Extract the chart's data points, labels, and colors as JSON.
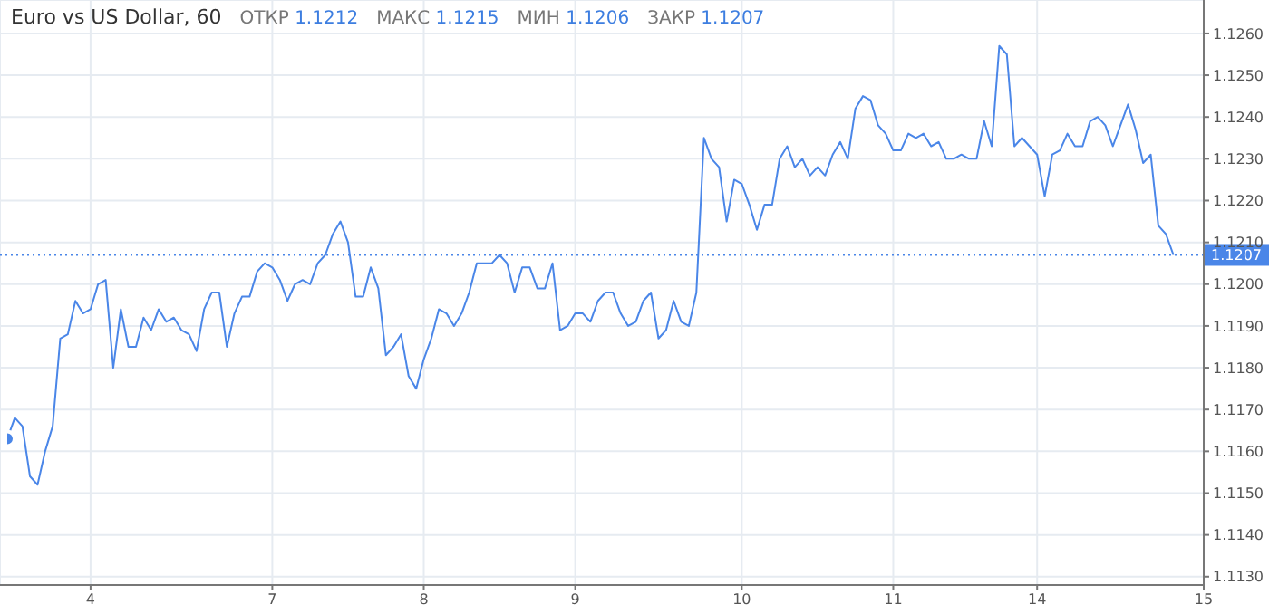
{
  "chart_data": {
    "type": "line",
    "title": "Euro vs US Dollar, 60",
    "annotations": [
      "ОТКР 1.1212",
      "МАКС 1.1215",
      "МИН 1.1206",
      "ЗАКР 1.1207"
    ],
    "categories": [
      null,
      null,
      null,
      null,
      null,
      null,
      null,
      null,
      null,
      null,
      null,
      "4",
      null,
      null,
      null,
      null,
      null,
      null,
      null,
      null,
      null,
      null,
      null,
      null,
      null,
      null,
      null,
      null,
      null,
      null,
      null,
      null,
      null,
      null,
      null,
      "7",
      null,
      null,
      null,
      null,
      null,
      null,
      null,
      null,
      null,
      null,
      null,
      null,
      null,
      null,
      null,
      null,
      null,
      null,
      null,
      "8",
      null,
      null,
      null,
      null,
      null,
      null,
      null,
      null,
      null,
      null,
      null,
      null,
      null,
      null,
      null,
      null,
      null,
      null,
      null,
      "9",
      null,
      null,
      null,
      null,
      null,
      null,
      null,
      null,
      null,
      null,
      null,
      null,
      null,
      null,
      null,
      null,
      null,
      null,
      null,
      null,
      null,
      "10",
      null,
      null,
      null,
      null,
      null,
      null,
      null,
      null,
      null,
      null,
      null,
      null,
      null,
      null,
      null,
      null,
      null,
      null,
      null,
      "11",
      null,
      null,
      null,
      null,
      null,
      null,
      null,
      null,
      null,
      null,
      null,
      null,
      null,
      null,
      null,
      null,
      null,
      null,
      "14",
      null,
      null,
      null,
      null,
      null,
      null,
      null,
      null,
      null,
      null,
      null,
      null,
      null,
      null,
      null,
      null,
      null,
      null,
      null,
      null,
      null,
      "15"
    ],
    "series": [
      {
        "color": "#4a86e8",
        "values": [
          1.1163,
          1.1168,
          1.1166,
          1.1154,
          1.1152,
          1.116,
          1.1166,
          1.1187,
          1.1188,
          1.1196,
          1.1193,
          1.1194,
          1.12,
          1.1201,
          1.118,
          1.1194,
          1.1185,
          1.1185,
          1.1192,
          1.1189,
          1.1194,
          1.1191,
          1.1192,
          1.1189,
          1.1188,
          1.1184,
          1.1194,
          1.1198,
          1.1198,
          1.1185,
          1.1193,
          1.1197,
          1.1197,
          1.1203,
          1.1205,
          1.1204,
          1.1201,
          1.1196,
          1.12,
          1.1201,
          1.12,
          1.1205,
          1.1207,
          1.1212,
          1.1215,
          1.121,
          1.1197,
          1.1197,
          1.1204,
          1.1199,
          1.1183,
          1.1185,
          1.1188,
          1.1178,
          1.1175,
          1.1182,
          1.1187,
          1.1194,
          1.1193,
          1.119,
          1.1193,
          1.1198,
          1.1205,
          1.1205,
          1.1205,
          1.1207,
          1.1205,
          1.1198,
          1.1204,
          1.1204,
          1.1199,
          1.1199,
          1.1205,
          1.1189,
          1.119,
          1.1193,
          1.1193,
          1.1191,
          1.1196,
          1.1198,
          1.1198,
          1.1193,
          1.119,
          1.1191,
          1.1196,
          1.1198,
          1.1187,
          1.1189,
          1.1196,
          1.1191,
          1.119,
          1.1198,
          1.1235,
          1.123,
          1.1228,
          1.1215,
          1.1225,
          1.1224,
          1.1219,
          1.1213,
          1.1219,
          1.1219,
          1.123,
          1.1233,
          1.1228,
          1.123,
          1.1226,
          1.1228,
          1.1226,
          1.1231,
          1.1234,
          1.123,
          1.1242,
          1.1245,
          1.1244,
          1.1238,
          1.1236,
          1.1232,
          1.1232,
          1.1236,
          1.1235,
          1.1236,
          1.1233,
          1.1234,
          1.123,
          1.123,
          1.1231,
          1.123,
          1.123,
          1.1239,
          1.1233,
          1.1257,
          1.1255,
          1.1233,
          1.1235,
          1.1233,
          1.1231,
          1.1221,
          1.1231,
          1.1232,
          1.1236,
          1.1233,
          1.1233,
          1.1239,
          1.124,
          1.1238,
          1.1233,
          1.1238,
          1.1243,
          1.1237,
          1.1229,
          1.1231,
          1.1214,
          1.1212,
          1.1207,
          null,
          null,
          null,
          null
        ]
      }
    ],
    "ylim": [
      1.1128,
      1.1268
    ],
    "yticks": [
      {
        "value": 1.113,
        "label": "1.1130"
      },
      {
        "value": 1.114,
        "label": "1.1140"
      },
      {
        "value": 1.115,
        "label": "1.1150"
      },
      {
        "value": 1.116,
        "label": "1.1160"
      },
      {
        "value": 1.117,
        "label": "1.1170"
      },
      {
        "value": 1.118,
        "label": "1.1180"
      },
      {
        "value": 1.119,
        "label": "1.1190"
      },
      {
        "value": 1.12,
        "label": "1.1200"
      },
      {
        "value": 1.121,
        "label": "1.1210"
      },
      {
        "value": 1.122,
        "label": "1.1220"
      },
      {
        "value": 1.123,
        "label": "1.1230"
      },
      {
        "value": 1.124,
        "label": "1.1240"
      },
      {
        "value": 1.125,
        "label": "1.1250"
      },
      {
        "value": 1.126,
        "label": "1.1260"
      }
    ],
    "ref_lines": [
      {
        "axis": "y",
        "value": 1.1207,
        "label": "1.1207",
        "color": "#4a86e8",
        "line_style": "dotted"
      }
    ],
    "grid": true,
    "marker": "none",
    "line_style": "solid"
  }
}
